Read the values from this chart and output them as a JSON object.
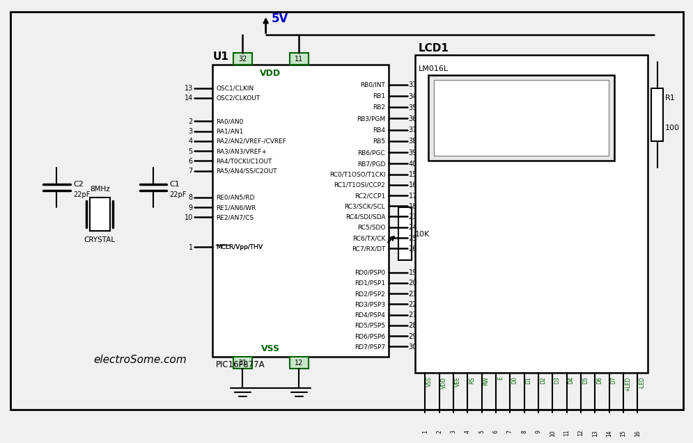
{
  "bg_color": "#f0f0f0",
  "line_color": "#000000",
  "green_color": "#006400",
  "blue_color": "#0000cc",
  "title": "electroSome.com",
  "pic_label": "U1",
  "pic_name": "PIC16F877A",
  "lcd_label": "LCD1",
  "lcd_model": "LM016L",
  "vdd_label": "VDD",
  "vss_label": "VSS",
  "v5_label": "5V",
  "r1_label": "R1",
  "r1_val": "100",
  "pot_label": "10K",
  "crystal_label": "CRYSTAL",
  "crystal_freq": "8MHz",
  "c1_label": "C1",
  "c1_val": "22pF",
  "c2_label": "C2",
  "c2_val": "22pF",
  "left_pins": [
    {
      "num": "13",
      "name": "OSC1/CLKIN"
    },
    {
      "num": "14",
      "name": "OSC2/CLKOUT"
    },
    {
      "num": "2",
      "name": "RA0/AN0"
    },
    {
      "num": "3",
      "name": "RA1/AN1"
    },
    {
      "num": "4",
      "name": "RA2/AN2/VREF-/CVREF"
    },
    {
      "num": "5",
      "name": "RA3/AN3/VREF+"
    },
    {
      "num": "6",
      "name": "RA4/T0CKI/C1OUT"
    },
    {
      "num": "7",
      "name": "RA5/AN4/SS/C2OUT"
    },
    {
      "num": "8",
      "name": "RE0/AN5/RD"
    },
    {
      "num": "9",
      "name": "RE1/AN6/WR"
    },
    {
      "num": "10",
      "name": "RE2/AN7/CS"
    },
    {
      "num": "1",
      "name": "MCLR/Vpp/THV"
    }
  ],
  "right_pins": [
    {
      "num": "33",
      "name": "RB0/INT"
    },
    {
      "num": "34",
      "name": "RB1"
    },
    {
      "num": "35",
      "name": "RB2"
    },
    {
      "num": "36",
      "name": "RB3/PGM"
    },
    {
      "num": "37",
      "name": "RB4"
    },
    {
      "num": "38",
      "name": "RB5"
    },
    {
      "num": "39",
      "name": "RB6/PGC"
    },
    {
      "num": "40",
      "name": "RB7/PGD"
    },
    {
      "num": "15",
      "name": "RC0/T1OSO/T1CKI"
    },
    {
      "num": "16",
      "name": "RC1/T1OSI/CCP2"
    },
    {
      "num": "17",
      "name": "RC2/CCP1"
    },
    {
      "num": "18",
      "name": "RC3/SCK/SCL"
    },
    {
      "num": "23",
      "name": "RC4/SDI/SDA"
    },
    {
      "num": "24",
      "name": "RC5/SDO"
    },
    {
      "num": "25",
      "name": "RC6/TX/CK"
    },
    {
      "num": "26",
      "name": "RC7/RX/DT"
    },
    {
      "num": "19",
      "name": "RD0/PSP0"
    },
    {
      "num": "20",
      "name": "RD1/PSP1"
    },
    {
      "num": "21",
      "name": "RD2/PSP2"
    },
    {
      "num": "22",
      "name": "RD3/PSP3"
    },
    {
      "num": "27",
      "name": "RD4/PSP4"
    },
    {
      "num": "28",
      "name": "RD5/PSP5"
    },
    {
      "num": "29",
      "name": "RD6/PSP6"
    },
    {
      "num": "30",
      "name": "RD7/PSP7"
    }
  ],
  "lcd_pins": [
    "VSS",
    "VDD",
    "VEE",
    "RS",
    "RW",
    "E",
    "D0",
    "D1",
    "D2",
    "D3",
    "D4",
    "D5",
    "D6",
    "D7",
    "+LED",
    "-LED"
  ],
  "lcd_pin_nums": [
    "1",
    "2",
    "3",
    "4",
    "5",
    "6",
    "7",
    "8",
    "9",
    "10",
    "11",
    "12",
    "13",
    "14",
    "15",
    "16"
  ]
}
